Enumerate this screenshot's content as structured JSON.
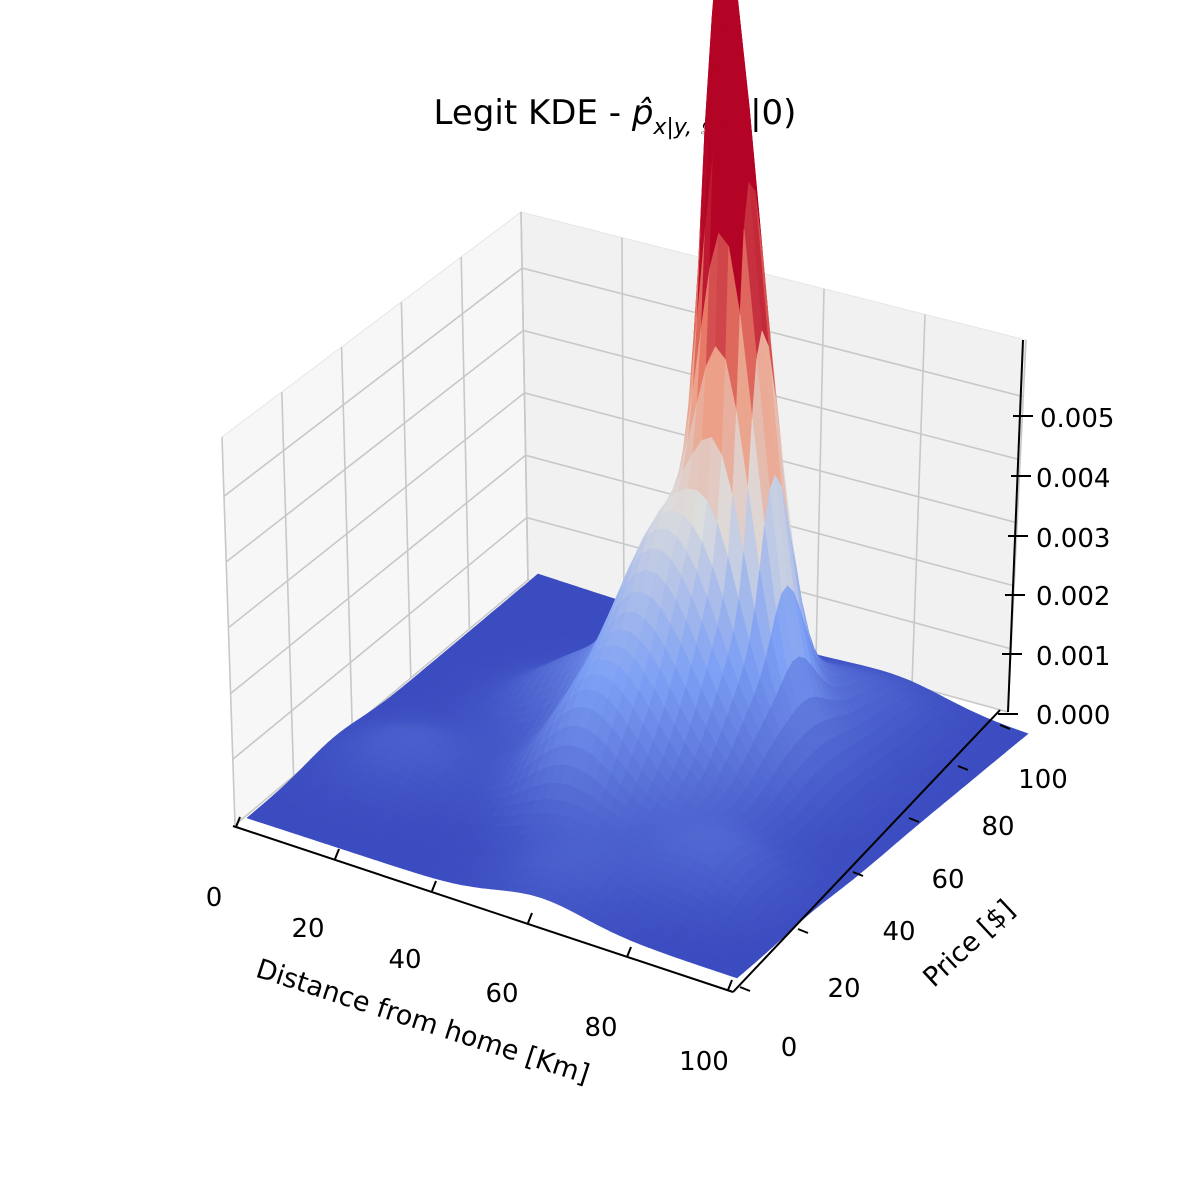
{
  "chart_data": {
    "type": "surface3d",
    "title_parts": {
      "prefix": "Legit KDE - ",
      "main": "p̂",
      "subscript": "x|y, 𝒟",
      "suffix": "(x|0)"
    },
    "xlabel": "Distance from home [Km]",
    "ylabel": "Price [$]",
    "x_ticks": [
      "0",
      "20",
      "40",
      "60",
      "80",
      "100"
    ],
    "y_ticks": [
      "0",
      "20",
      "40",
      "60",
      "80",
      "100"
    ],
    "z_ticks": [
      "0.000",
      "0.001",
      "0.002",
      "0.003",
      "0.004",
      "0.005"
    ],
    "xlim": [
      0,
      100
    ],
    "ylim": [
      0,
      100
    ],
    "zlim": [
      0,
      0.0059
    ],
    "colormap": "coolwarm",
    "colormap_low": "#3b4cc0",
    "colormap_mid": "#dddddd",
    "colormap_high": "#b40426",
    "grid": true,
    "peaks": [
      {
        "x": 58,
        "y": 72,
        "density": 0.0053
      },
      {
        "x": 64,
        "y": 66,
        "density": 0.0041
      },
      {
        "x": 55,
        "y": 55,
        "density": 0.0012
      },
      {
        "x": 50,
        "y": 35,
        "density": 0.0009
      },
      {
        "x": 30,
        "y": 60,
        "density": 0.0004
      },
      {
        "x": 15,
        "y": 30,
        "density": 0.0003
      },
      {
        "x": 80,
        "y": 25,
        "density": 0.0004
      },
      {
        "x": 60,
        "y": 10,
        "density": 0.0003
      },
      {
        "x": 75,
        "y": 90,
        "density": 0.0002
      }
    ]
  }
}
